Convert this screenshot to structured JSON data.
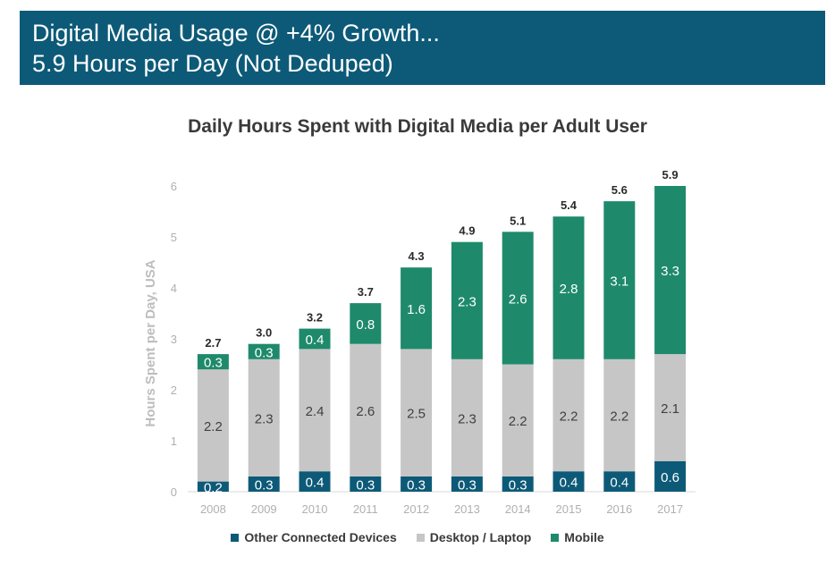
{
  "header": {
    "line1": "Digital Media Usage @ +4% Growth...",
    "line2": "5.9 Hours per Day (Not Deduped)"
  },
  "chart_data": {
    "type": "bar",
    "stacked": true,
    "title": "Daily Hours Spent with Digital Media per Adult User",
    "xlabel": "",
    "ylabel": "Hours Spent per Day, USA",
    "ylim": [
      0,
      6
    ],
    "yticks": [
      0,
      1,
      2,
      3,
      4,
      5,
      6
    ],
    "grid": false,
    "legend_position": "bottom",
    "categories": [
      "2008",
      "2009",
      "2010",
      "2011",
      "2012",
      "2013",
      "2014",
      "2015",
      "2016",
      "2017"
    ],
    "series": [
      {
        "name": "Other Connected Devices",
        "color": "#0d5a78",
        "values": [
          0.2,
          0.3,
          0.4,
          0.3,
          0.3,
          0.3,
          0.3,
          0.4,
          0.4,
          0.6
        ]
      },
      {
        "name": "Desktop / Laptop",
        "color": "#c6c6c6",
        "values": [
          2.2,
          2.3,
          2.4,
          2.6,
          2.5,
          2.3,
          2.2,
          2.2,
          2.2,
          2.1
        ]
      },
      {
        "name": "Mobile",
        "color": "#1e8a6b",
        "values": [
          0.3,
          0.3,
          0.4,
          0.8,
          1.6,
          2.3,
          2.6,
          2.8,
          3.1,
          3.3
        ]
      }
    ],
    "totals": [
      "2.7",
      "3.0",
      "3.2",
      "3.7",
      "4.3",
      "4.9",
      "5.1",
      "5.4",
      "5.6",
      "5.9"
    ]
  }
}
